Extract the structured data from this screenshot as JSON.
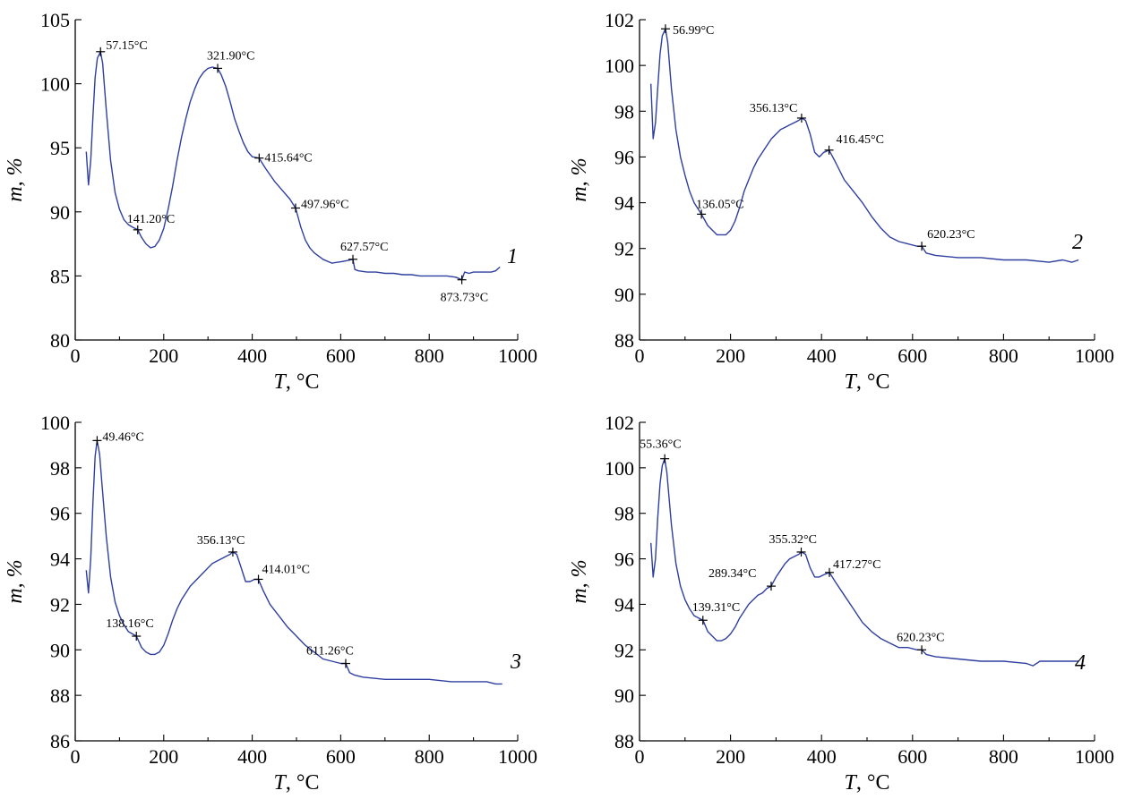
{
  "chart_data": [
    {
      "type": "line",
      "panel_label": "1",
      "xlabel_var": "T",
      "xlabel_unit": ", °C",
      "ylabel_var": "m",
      "ylabel_unit": ", %",
      "xlim": [
        0,
        1000
      ],
      "ylim": [
        80,
        105
      ],
      "x_ticks": [
        0,
        200,
        400,
        600,
        800,
        1000
      ],
      "y_ticks": [
        80,
        85,
        90,
        95,
        100,
        105
      ],
      "line_color": "#2f3fa0",
      "annotations": [
        {
          "x": 57.15,
          "y": 102.5,
          "label": "57.15°C"
        },
        {
          "x": 141.2,
          "y": 88.6,
          "label": "141.20°C"
        },
        {
          "x": 321.9,
          "y": 101.2,
          "label": "321.90°C"
        },
        {
          "x": 415.64,
          "y": 94.2,
          "label": "415.64°C"
        },
        {
          "x": 497.96,
          "y": 90.3,
          "label": "497.96°C"
        },
        {
          "x": 627.57,
          "y": 86.3,
          "label": "627.57°C"
        },
        {
          "x": 873.73,
          "y": 84.7,
          "label": "873.73°C"
        }
      ],
      "series": [
        {
          "x": [
            25,
            30,
            35,
            40,
            45,
            50,
            57.15,
            62,
            70,
            80,
            90,
            100,
            110,
            120,
            130,
            141.2,
            150,
            160,
            170,
            180,
            190,
            200,
            210,
            220,
            230,
            240,
            250,
            260,
            270,
            280,
            290,
            300,
            310,
            321.9,
            330,
            340,
            350,
            360,
            370,
            380,
            390,
            400,
            415.64,
            430,
            450,
            470,
            485,
            497.96,
            510,
            520,
            530,
            540,
            560,
            580,
            600,
            615,
            627.57,
            632,
            640,
            660,
            680,
            700,
            720,
            740,
            760,
            780,
            800,
            820,
            840,
            860,
            873.73,
            880,
            890,
            900,
            920,
            940,
            950,
            960
          ],
          "y": [
            94.7,
            92.1,
            94.0,
            97.5,
            100.5,
            102.0,
            102.5,
            101.6,
            98.0,
            94.0,
            91.5,
            90.2,
            89.4,
            89.0,
            88.8,
            88.6,
            88.0,
            87.5,
            87.2,
            87.3,
            87.8,
            88.7,
            90.2,
            92.0,
            94.0,
            95.8,
            97.3,
            98.6,
            99.6,
            100.4,
            100.9,
            101.2,
            101.3,
            101.2,
            100.7,
            99.8,
            98.6,
            97.3,
            96.3,
            95.4,
            94.7,
            94.3,
            94.2,
            93.4,
            92.4,
            91.6,
            91.0,
            90.3,
            88.8,
            87.8,
            87.2,
            86.8,
            86.3,
            86.0,
            86.1,
            86.2,
            86.3,
            85.5,
            85.4,
            85.3,
            85.3,
            85.2,
            85.2,
            85.1,
            85.1,
            85.0,
            85.0,
            85.0,
            85.0,
            84.9,
            84.7,
            85.3,
            85.2,
            85.3,
            85.3,
            85.3,
            85.4,
            85.7
          ]
        }
      ]
    },
    {
      "type": "line",
      "panel_label": "2",
      "xlabel_var": "T",
      "xlabel_unit": ", °C",
      "ylabel_var": "m",
      "ylabel_unit": ", %",
      "xlim": [
        0,
        1000
      ],
      "ylim": [
        88,
        102
      ],
      "x_ticks": [
        0,
        200,
        400,
        600,
        800,
        1000
      ],
      "y_ticks": [
        88,
        90,
        92,
        94,
        96,
        98,
        100,
        102
      ],
      "line_color": "#2f3fa0",
      "annotations": [
        {
          "x": 56.99,
          "y": 101.6,
          "label": "56.99°C"
        },
        {
          "x": 136.05,
          "y": 93.5,
          "label": "136.05°C"
        },
        {
          "x": 356.13,
          "y": 97.7,
          "label": "356.13°C"
        },
        {
          "x": 416.45,
          "y": 96.3,
          "label": "416.45°C"
        },
        {
          "x": 620.23,
          "y": 92.1,
          "label": "620.23°C"
        }
      ],
      "series": [
        {
          "x": [
            25,
            30,
            35,
            40,
            45,
            50,
            56.99,
            62,
            70,
            80,
            90,
            100,
            110,
            120,
            136.05,
            150,
            160,
            170,
            180,
            190,
            200,
            210,
            220,
            230,
            240,
            250,
            260,
            270,
            280,
            290,
            300,
            310,
            320,
            330,
            340,
            350,
            356.13,
            365,
            375,
            385,
            395,
            405,
            416.45,
            430,
            450,
            470,
            490,
            510,
            530,
            550,
            570,
            590,
            610,
            620.23,
            630,
            650,
            700,
            750,
            800,
            850,
            900,
            930,
            950,
            965
          ],
          "y": [
            99.2,
            96.8,
            97.5,
            99.0,
            100.5,
            101.3,
            101.6,
            101.0,
            99.0,
            97.2,
            96.0,
            95.2,
            94.5,
            94.0,
            93.5,
            93.0,
            92.8,
            92.6,
            92.6,
            92.6,
            92.8,
            93.2,
            93.8,
            94.5,
            95.0,
            95.5,
            95.9,
            96.2,
            96.5,
            96.8,
            97.0,
            97.2,
            97.3,
            97.4,
            97.5,
            97.6,
            97.7,
            97.6,
            97.0,
            96.2,
            96.0,
            96.2,
            96.3,
            95.8,
            95.0,
            94.5,
            94.0,
            93.4,
            92.9,
            92.5,
            92.3,
            92.2,
            92.1,
            92.1,
            91.8,
            91.7,
            91.6,
            91.6,
            91.5,
            91.5,
            91.4,
            91.5,
            91.4,
            91.5
          ]
        }
      ]
    },
    {
      "type": "line",
      "panel_label": "3",
      "xlabel_var": "T",
      "xlabel_unit": ", °C",
      "ylabel_var": "m",
      "ylabel_unit": ", %",
      "xlim": [
        0,
        1000
      ],
      "ylim": [
        86,
        100
      ],
      "x_ticks": [
        0,
        200,
        400,
        600,
        800,
        1000
      ],
      "y_ticks": [
        86,
        88,
        90,
        92,
        94,
        96,
        98,
        100
      ],
      "line_color": "#2f3fa0",
      "annotations": [
        {
          "x": 49.46,
          "y": 99.2,
          "label": "49.46°C"
        },
        {
          "x": 138.16,
          "y": 90.6,
          "label": "138.16°C"
        },
        {
          "x": 356.13,
          "y": 94.3,
          "label": "356.13°C"
        },
        {
          "x": 414.01,
          "y": 93.1,
          "label": "414.01°C"
        },
        {
          "x": 611.26,
          "y": 89.4,
          "label": "611.26°C"
        }
      ],
      "series": [
        {
          "x": [
            25,
            30,
            35,
            40,
            45,
            49.46,
            55,
            60,
            70,
            80,
            90,
            100,
            110,
            120,
            138.16,
            150,
            160,
            170,
            180,
            190,
            200,
            210,
            220,
            230,
            240,
            250,
            260,
            270,
            280,
            290,
            300,
            310,
            320,
            330,
            340,
            350,
            356.13,
            365,
            375,
            385,
            395,
            405,
            414.01,
            425,
            440,
            460,
            480,
            500,
            520,
            540,
            560,
            580,
            600,
            611.26,
            620,
            630,
            650,
            700,
            750,
            800,
            850,
            900,
            930,
            950,
            965
          ],
          "y": [
            93.5,
            92.5,
            94.0,
            96.5,
            98.5,
            99.2,
            98.6,
            97.4,
            95.0,
            93.2,
            92.1,
            91.5,
            91.1,
            90.8,
            90.6,
            90.1,
            89.9,
            89.8,
            89.8,
            89.9,
            90.2,
            90.7,
            91.3,
            91.8,
            92.2,
            92.5,
            92.8,
            93.0,
            93.2,
            93.4,
            93.6,
            93.8,
            93.9,
            94.0,
            94.1,
            94.2,
            94.3,
            94.2,
            93.6,
            93.0,
            93.0,
            93.1,
            93.1,
            92.6,
            92.0,
            91.5,
            91.0,
            90.6,
            90.2,
            89.9,
            89.6,
            89.5,
            89.4,
            89.4,
            89.0,
            88.9,
            88.8,
            88.7,
            88.7,
            88.7,
            88.6,
            88.6,
            88.6,
            88.5,
            88.5
          ]
        }
      ]
    },
    {
      "type": "line",
      "panel_label": "4",
      "xlabel_var": "T",
      "xlabel_unit": ", °C",
      "ylabel_var": "m",
      "ylabel_unit": ", %",
      "xlim": [
        0,
        1000
      ],
      "ylim": [
        88,
        102
      ],
      "x_ticks": [
        0,
        200,
        400,
        600,
        800,
        1000
      ],
      "y_ticks": [
        88,
        90,
        92,
        94,
        96,
        98,
        100,
        102
      ],
      "line_color": "#2f3fa0",
      "annotations": [
        {
          "x": 55.36,
          "y": 100.4,
          "label": "55.36°C"
        },
        {
          "x": 139.31,
          "y": 93.3,
          "label": "139.31°C"
        },
        {
          "x": 289.34,
          "y": 94.8,
          "label": "289.34°C"
        },
        {
          "x": 355.32,
          "y": 96.3,
          "label": "355.32°C"
        },
        {
          "x": 417.27,
          "y": 95.4,
          "label": "417.27°C"
        },
        {
          "x": 620.23,
          "y": 92.0,
          "label": "620.23°C"
        }
      ],
      "series": [
        {
          "x": [
            25,
            30,
            35,
            40,
            45,
            50,
            55.36,
            60,
            70,
            80,
            90,
            100,
            110,
            120,
            139.31,
            150,
            160,
            170,
            180,
            190,
            200,
            210,
            220,
            230,
            240,
            250,
            260,
            270,
            280,
            289.34,
            300,
            310,
            320,
            330,
            340,
            350,
            355.32,
            365,
            375,
            385,
            395,
            405,
            417.27,
            430,
            450,
            470,
            490,
            510,
            530,
            550,
            570,
            590,
            610,
            620.23,
            630,
            650,
            700,
            750,
            800,
            850,
            865,
            880,
            900,
            930,
            950,
            965
          ],
          "y": [
            96.7,
            95.2,
            96.0,
            97.8,
            99.3,
            100.1,
            100.4,
            99.8,
            97.5,
            95.8,
            94.8,
            94.2,
            93.8,
            93.5,
            93.3,
            92.8,
            92.6,
            92.4,
            92.4,
            92.5,
            92.7,
            93.0,
            93.4,
            93.7,
            94.0,
            94.2,
            94.4,
            94.5,
            94.7,
            94.8,
            95.2,
            95.5,
            95.8,
            96.0,
            96.1,
            96.2,
            96.3,
            96.2,
            95.6,
            95.2,
            95.2,
            95.3,
            95.4,
            95.0,
            94.4,
            93.8,
            93.2,
            92.8,
            92.5,
            92.3,
            92.1,
            92.1,
            92.0,
            92.0,
            91.8,
            91.7,
            91.6,
            91.5,
            91.5,
            91.4,
            91.3,
            91.5,
            91.5,
            91.5,
            91.5,
            91.5
          ]
        }
      ]
    }
  ]
}
